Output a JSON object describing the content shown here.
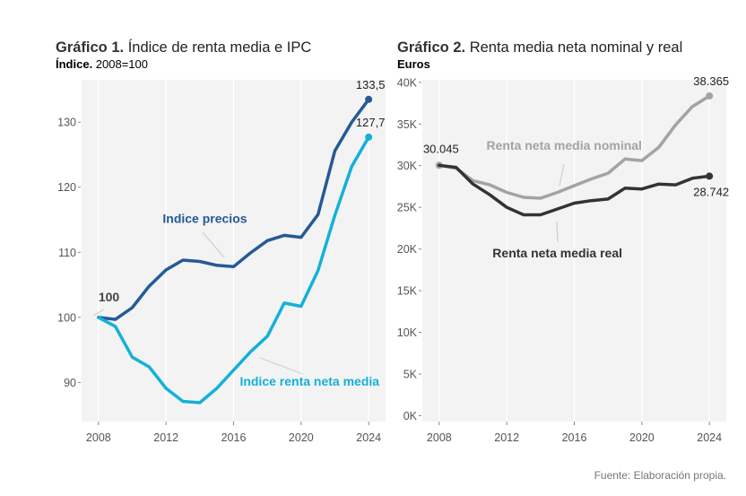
{
  "chart1": {
    "title_bold": "Gráfico 1.",
    "title_rest": " Índice de renta media e IPC",
    "subtitle_bold": "Índice.",
    "subtitle_rest": " 2008=100"
  },
  "chart2": {
    "title_bold": "Gráfico 2.",
    "title_rest": " Renta media neta nominal y real",
    "subtitle_bold": "Euros",
    "subtitle_rest": ""
  },
  "source": "Fuente: Elaboración propia.",
  "colors": {
    "panel_bg": "#f3f3f3",
    "grid": "#ffffff",
    "indice_precios": "#245a96",
    "indice_renta": "#13b1d9",
    "nominal": "#a3a3a3",
    "real": "#333333"
  },
  "chart_data": [
    {
      "type": "line",
      "title": "Gráfico 1. Índice de renta media e IPC",
      "subtitle": "Índice. 2008=100",
      "xlabel": "",
      "ylabel": "",
      "x": [
        2008,
        2009,
        2010,
        2011,
        2012,
        2013,
        2014,
        2015,
        2016,
        2017,
        2018,
        2019,
        2020,
        2021,
        2022,
        2023,
        2024
      ],
      "xticks": [
        2008,
        2012,
        2016,
        2020,
        2024
      ],
      "xlim": [
        2007,
        2025
      ],
      "yticks": [
        90,
        100,
        110,
        120,
        130
      ],
      "yticklabels": [
        "90",
        "100",
        "110",
        "120",
        "130"
      ],
      "ylim": [
        84,
        136.5
      ],
      "grid": "vertical",
      "series": [
        {
          "name": "Indice precios",
          "color_key": "indice_precios",
          "values": [
            100,
            99.7,
            101.5,
            104.8,
            107.3,
            108.8,
            108.6,
            108.0,
            107.8,
            109.9,
            111.8,
            112.6,
            112.3,
            115.8,
            125.6,
            130.0,
            133.5
          ],
          "end_label": "133,5"
        },
        {
          "name": "Indice renta neta media",
          "color_key": "indice_renta",
          "values": [
            100,
            98.6,
            93.9,
            92.4,
            89.1,
            87.1,
            86.9,
            89.1,
            91.9,
            94.7,
            97.1,
            102.2,
            101.7,
            107.2,
            115.7,
            123.2,
            127.7
          ],
          "end_label": "127,7"
        }
      ],
      "annotations": [
        {
          "text": "100",
          "x": 2008,
          "y": 100
        },
        {
          "text": "Indice precios",
          "x": 2014.3,
          "y": 114.5
        },
        {
          "text": "Indice renta neta media",
          "x": 2020.5,
          "y": 89.5
        }
      ]
    },
    {
      "type": "line",
      "title": "Gráfico 2. Renta media neta nominal y real",
      "subtitle": "Euros",
      "xlabel": "",
      "ylabel": "",
      "x": [
        2008,
        2009,
        2010,
        2011,
        2012,
        2013,
        2014,
        2015,
        2016,
        2017,
        2018,
        2019,
        2020,
        2021,
        2022,
        2023,
        2024
      ],
      "xticks": [
        2008,
        2012,
        2016,
        2020,
        2024
      ],
      "xlim": [
        2007,
        2025
      ],
      "yticks": [
        0,
        5000,
        10000,
        15000,
        20000,
        25000,
        30000,
        35000,
        40000
      ],
      "yticklabels": [
        "0K",
        "5K",
        "10K",
        "15K",
        "20K",
        "25K",
        "30K",
        "35K",
        "40K"
      ],
      "ylim": [
        -700,
        40300
      ],
      "grid": "vertical",
      "series": [
        {
          "name": "Renta neta media nominal",
          "color_key": "nominal",
          "values": [
            30045,
            29700,
            28200,
            27700,
            26800,
            26200,
            26100,
            26800,
            27600,
            28400,
            29100,
            30800,
            30600,
            32200,
            34900,
            37100,
            38365
          ],
          "start_label": "30.045",
          "end_label": "38.365"
        },
        {
          "name": "Renta neta media real",
          "color_key": "real",
          "values": [
            30045,
            29800,
            27800,
            26500,
            25000,
            24100,
            24100,
            24800,
            25500,
            25800,
            26000,
            27300,
            27200,
            27800,
            27700,
            28500,
            28742
          ],
          "end_label": "28.742"
        }
      ],
      "annotations": [
        {
          "text": "Renta neta media nominal",
          "x": 2015.4,
          "y": 31900
        },
        {
          "text": "Renta neta media real",
          "x": 2015.0,
          "y": 19000
        }
      ]
    }
  ]
}
